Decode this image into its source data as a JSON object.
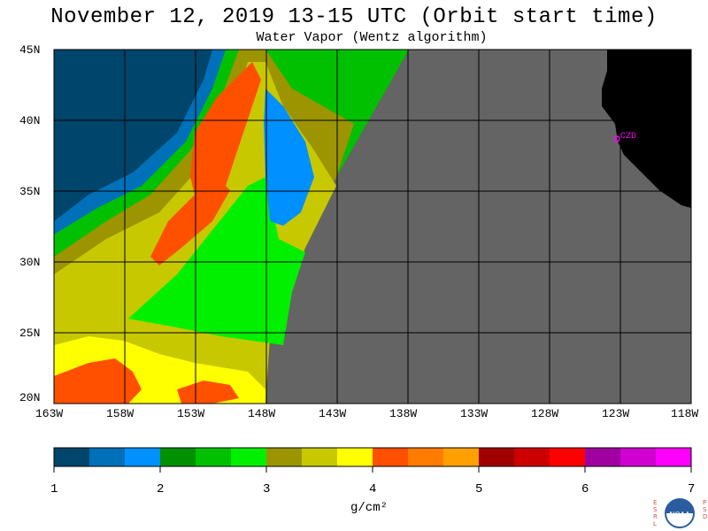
{
  "title": "November 12, 2019  13-15 UTC  (Orbit start time)",
  "subtitle": "Water Vapor (Wentz algorithm)",
  "map": {
    "lat_ticks": [
      "45N",
      "40N",
      "35N",
      "30N",
      "25N",
      "20N"
    ],
    "lon_ticks": [
      "163W",
      "158W",
      "153W",
      "148W",
      "143W",
      "138W",
      "133W",
      "128W",
      "123W",
      "118W"
    ],
    "lat_range": [
      20,
      45
    ],
    "lon_range": [
      -163,
      -118
    ],
    "station_label": "CZD",
    "colors": {
      "land": "#000000",
      "no_data": "#646464",
      "station": "#ff00ff"
    }
  },
  "colorbar": {
    "labels": [
      "1",
      "2",
      "3",
      "4",
      "5",
      "6",
      "7"
    ],
    "unit": "g/cm²",
    "range": [
      1,
      7
    ],
    "colors": [
      "#00456b",
      "#0070b8",
      "#0090ff",
      "#009000",
      "#00c000",
      "#00f000",
      "#9c9400",
      "#c8c800",
      "#ffff00",
      "#ff5000",
      "#ff7c00",
      "#ffa000",
      "#a00000",
      "#cc0000",
      "#ff0000",
      "#a000a0",
      "#d000d0",
      "#ff00ff"
    ]
  },
  "logo": {
    "left_letters": [
      "E",
      "S",
      "R",
      "L"
    ],
    "right_letters": [
      "P",
      "S",
      "D"
    ],
    "text": "NOAA"
  }
}
